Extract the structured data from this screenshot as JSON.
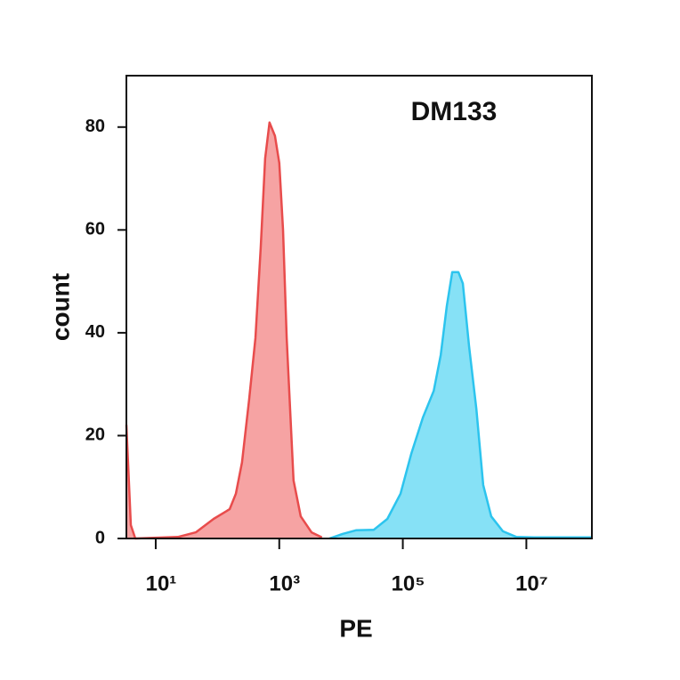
{
  "chart_data": {
    "type": "histogram-overlay",
    "annotation": "DM133",
    "x_label": "PE",
    "y_label": "count",
    "xscale": "log",
    "xlim": [
      3.35,
      115000000
    ],
    "xticks": [
      {
        "value": 10,
        "label": "10¹"
      },
      {
        "value": 1000,
        "label": "10³"
      },
      {
        "value": 100000,
        "label": "10⁵"
      },
      {
        "value": 10000000,
        "label": "10⁷"
      }
    ],
    "ylim": [
      0,
      90
    ],
    "yticks": [
      0,
      20,
      40,
      60,
      80
    ],
    "series": [
      {
        "color": "#e84c4c",
        "fill": "#f6a3a3",
        "x": [
          3.35,
          3.95,
          4.67,
          22.9,
          44.5,
          86.5,
          157,
          198,
          249,
          325,
          412,
          501,
          590,
          696,
          851,
          1000,
          1149,
          1318,
          1700,
          2230,
          3330,
          4900
        ],
        "values": [
          22.1,
          2.6,
          0,
          0.3,
          1.2,
          3.8,
          5.7,
          8.7,
          14.8,
          27,
          39,
          56.5,
          73.9,
          80.9,
          78.3,
          73,
          60,
          39,
          11.3,
          4.3,
          1.2,
          0.2
        ]
      },
      {
        "color": "#2cc4ee",
        "fill": "#86e1f6",
        "x": [
          6460,
          10700,
          17400,
          33900,
          56100,
          91700,
          137000,
          211000,
          316000,
          411000,
          516000,
          631000,
          794000,
          935000,
          1180000,
          1550000,
          2000000,
          2700000,
          4170000,
          6900000,
          13300000,
          115000000
        ],
        "values": [
          0,
          0.9,
          1.6,
          1.7,
          3.8,
          8.7,
          16.5,
          23.5,
          28.7,
          35.7,
          45.2,
          51.8,
          51.8,
          49.6,
          37.4,
          25.2,
          10.4,
          4.3,
          1.4,
          0.3,
          0.2,
          0.2
        ]
      }
    ]
  }
}
